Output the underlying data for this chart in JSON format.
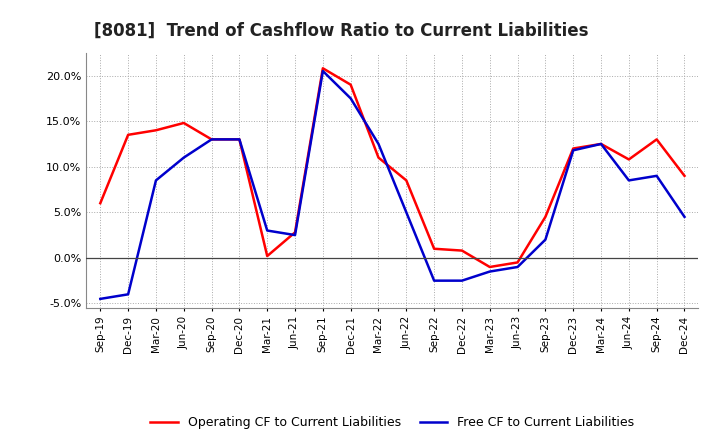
{
  "title": "[8081]  Trend of Cashflow Ratio to Current Liabilities",
  "x_labels": [
    "Sep-19",
    "Dec-19",
    "Mar-20",
    "Jun-20",
    "Sep-20",
    "Dec-20",
    "Mar-21",
    "Jun-21",
    "Sep-21",
    "Dec-21",
    "Mar-22",
    "Jun-22",
    "Sep-22",
    "Dec-22",
    "Mar-23",
    "Jun-23",
    "Sep-23",
    "Dec-23",
    "Mar-24",
    "Jun-24",
    "Sep-24",
    "Dec-24"
  ],
  "operating_cf": [
    6.0,
    13.5,
    14.0,
    14.8,
    13.0,
    13.0,
    0.2,
    2.8,
    20.8,
    19.0,
    11.0,
    8.5,
    1.0,
    0.8,
    -1.0,
    -0.5,
    4.5,
    12.0,
    12.5,
    10.8,
    13.0,
    9.0
  ],
  "free_cf": [
    -4.5,
    -4.0,
    8.5,
    11.0,
    13.0,
    13.0,
    3.0,
    2.5,
    20.5,
    17.5,
    12.5,
    5.0,
    -2.5,
    -2.5,
    -1.5,
    -1.0,
    2.0,
    11.8,
    12.5,
    8.5,
    9.0,
    4.5
  ],
  "operating_color": "#ff0000",
  "free_color": "#0000cc",
  "ylim": [
    -5.5,
    22.5
  ],
  "yticks": [
    -5.0,
    0.0,
    5.0,
    10.0,
    15.0,
    20.0
  ],
  "background_color": "#ffffff",
  "grid_color": "#aaaaaa",
  "legend_operating": "Operating CF to Current Liabilities",
  "legend_free": "Free CF to Current Liabilities",
  "title_fontsize": 12,
  "line_width": 1.8
}
